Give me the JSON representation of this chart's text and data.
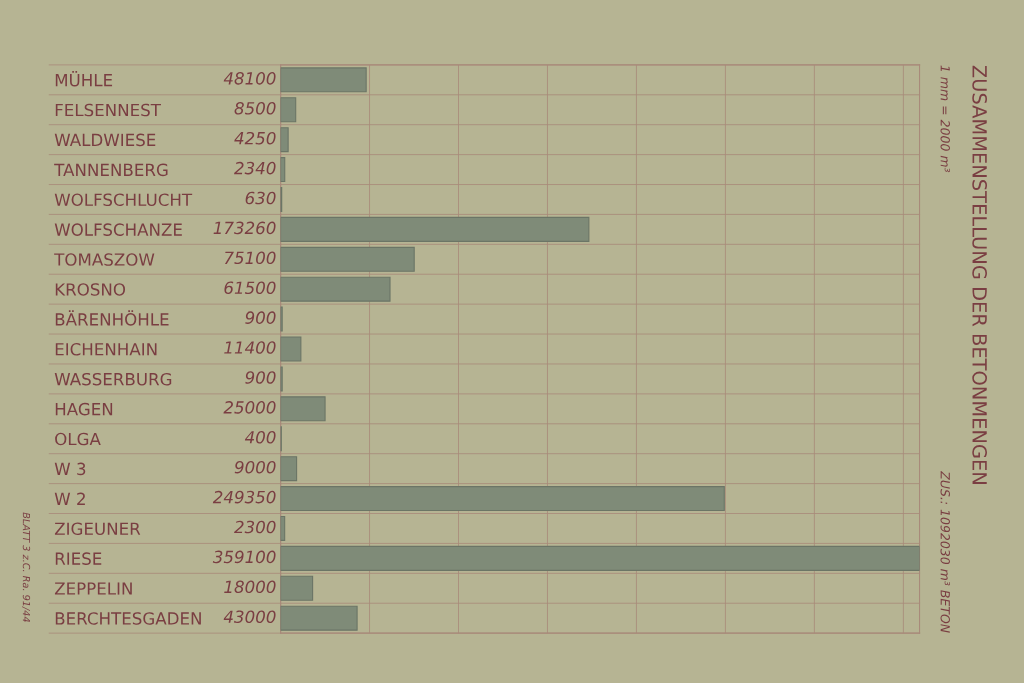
{
  "chart_data": {
    "type": "bar",
    "orientation": "horizontal",
    "relative": false,
    "title": "ZUSAMMENSTELLUNG DER BETONMENGEN",
    "subtitle": "1 mm = 2000 m³",
    "categories": [
      "MÜHLE",
      "FELSENNEST",
      "WALDWIESE",
      "TANNENBERG",
      "WOLFSCHLUCHT",
      "WOLFSCHANZE",
      "TOMASZOW",
      "KROSNO",
      "BÄRENHÖHLE",
      "EICHENHAIN",
      "WASSERBURG",
      "HAGEN",
      "OLGA",
      "W 3",
      "W 2",
      "ZIGEUNER",
      "RIESE",
      "ZEPPELIN",
      "BERCHTESGADEN"
    ],
    "values": [
      48100,
      8500,
      4250,
      2340,
      630,
      173260,
      75100,
      61500,
      900,
      11400,
      900,
      25000,
      400,
      9000,
      249350,
      2300,
      359100,
      18000,
      43000
    ],
    "color": "#7f8b78",
    "data_labels": true,
    "grid": true,
    "tick_labels": "y",
    "xlim": [
      0,
      359100
    ],
    "annotations": [
      "ZUS.: 1092030 m³ BETON",
      "BLATT 3 z.C. Ra. 91/44"
    ]
  }
}
